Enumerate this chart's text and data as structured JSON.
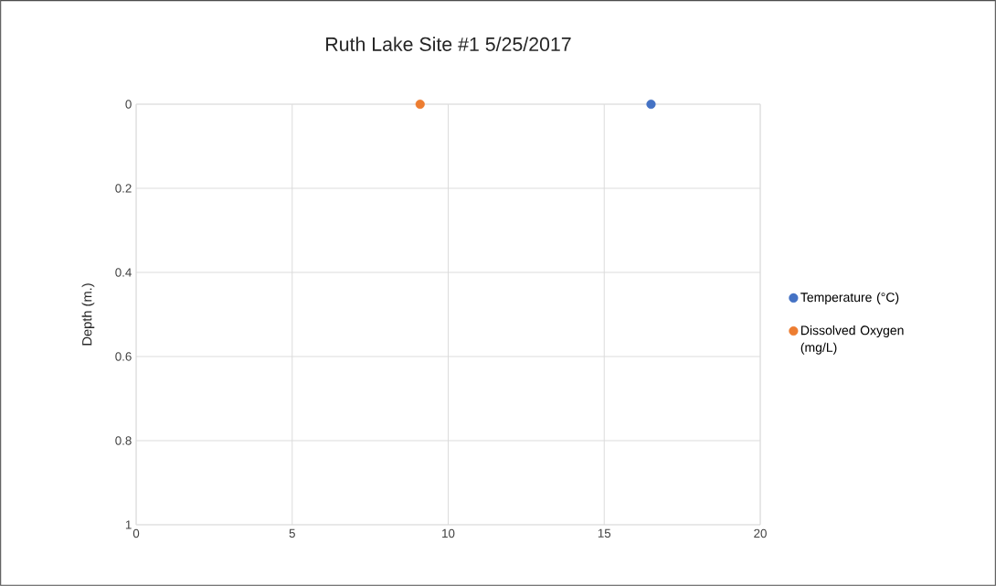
{
  "chart_data": {
    "type": "scatter",
    "title": "Ruth Lake Site #1    5/25/2017",
    "ylabel": "Depth (m.)",
    "xlim": [
      0,
      20
    ],
    "xticks": [
      0,
      5,
      10,
      15,
      20
    ],
    "ylim": [
      1,
      0
    ],
    "yticks": [
      0,
      0.2,
      0.4,
      0.6,
      0.8,
      1
    ],
    "grid": true,
    "legend": "right",
    "marker": "circle",
    "series": [
      {
        "name": "Temperature (°C)",
        "color": "#4472c4",
        "x": [
          16.5
        ],
        "values": [
          0
        ]
      },
      {
        "name": "Dissolved Oxygen (mg/L)",
        "color": "#ed7d31",
        "x": [
          9.1
        ],
        "values": [
          0
        ]
      }
    ]
  }
}
